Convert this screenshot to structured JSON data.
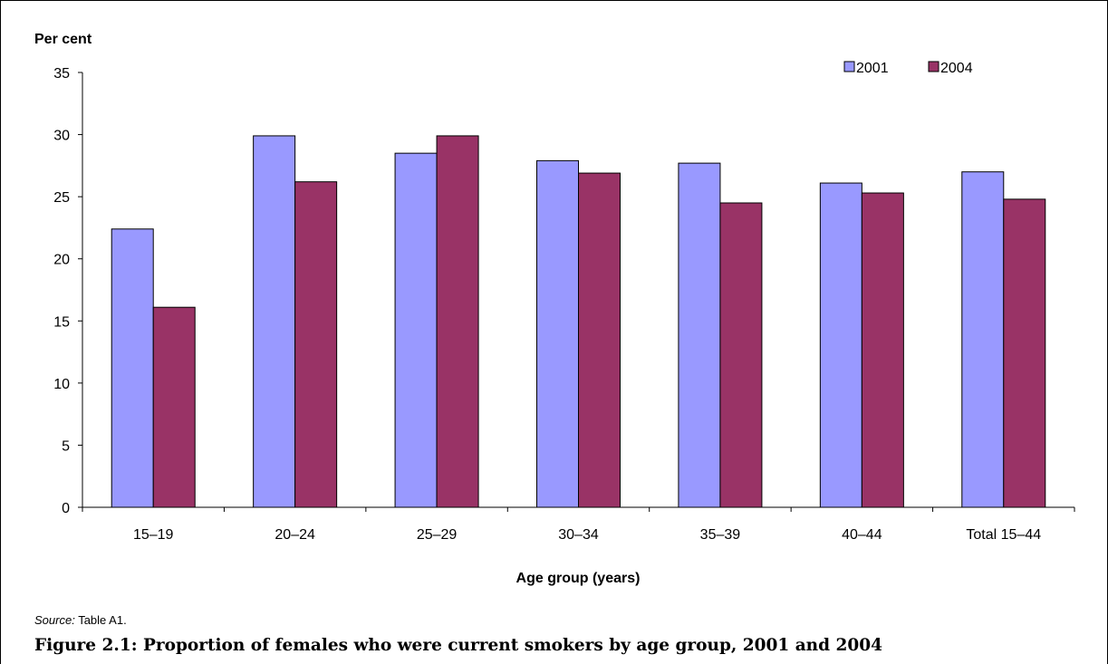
{
  "chart_data": {
    "type": "bar",
    "ylabel": "Per cent",
    "xlabel": "Age group (years)",
    "ylim": [
      0,
      35
    ],
    "yticks": [
      0,
      5,
      10,
      15,
      20,
      25,
      30,
      35
    ],
    "grid": false,
    "legend_position": "top-right",
    "categories": [
      "15–19",
      "20–24",
      "25–29",
      "30–34",
      "35–39",
      "40–44",
      "Total 15–44"
    ],
    "series": [
      {
        "name": "2001",
        "color": "#9999ff",
        "values": [
          22.4,
          29.9,
          28.5,
          27.9,
          27.7,
          26.1,
          27.0
        ]
      },
      {
        "name": "2004",
        "color": "#993366",
        "values": [
          16.1,
          26.2,
          29.9,
          26.9,
          24.5,
          25.3,
          24.8
        ]
      }
    ]
  },
  "source": {
    "label": "Source:",
    "text": "Table A1."
  },
  "caption": "Figure 2.1: Proportion of females who were current smokers by age group, 2001 and 2004"
}
